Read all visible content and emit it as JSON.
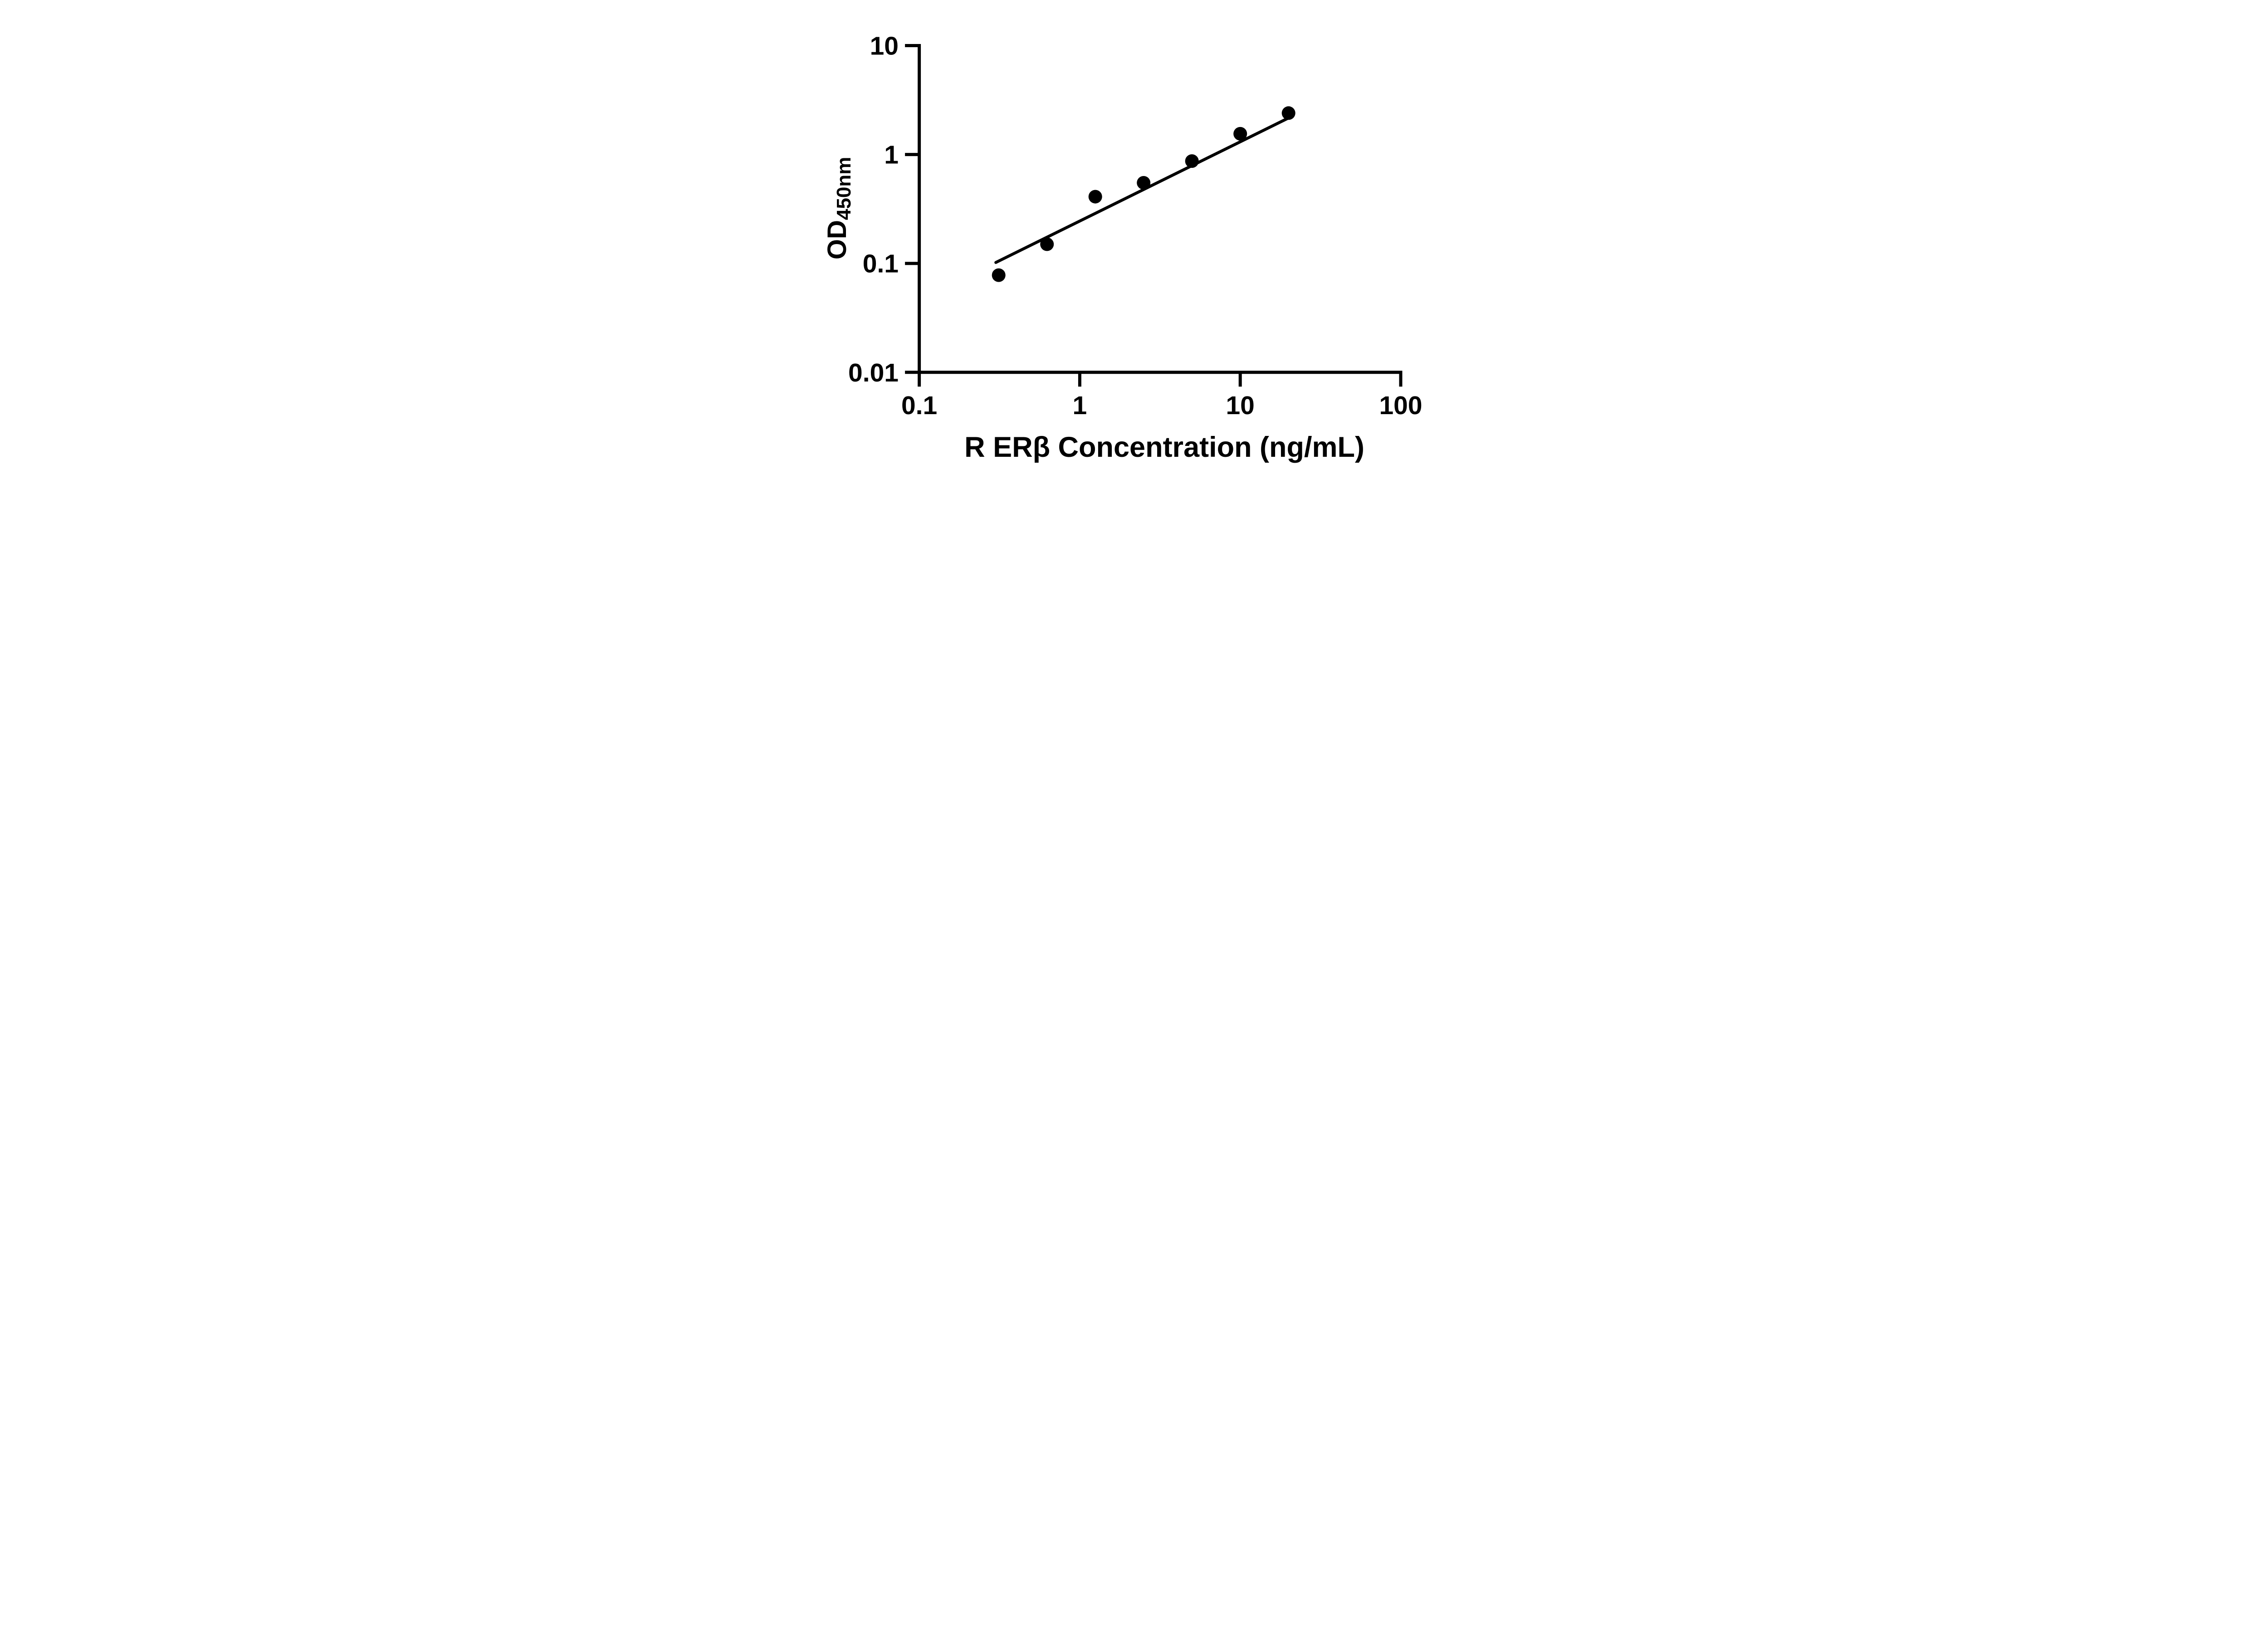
{
  "figure": {
    "background": "#ffffff",
    "ink_color": "#000000",
    "description": "ELISA standard curve scatter plot with fitted line on log-log axes"
  },
  "chart_data": {
    "type": "scatter",
    "title": "",
    "xlabel": "R ERβ Concentration (ng/mL)",
    "ylabel_main": "OD",
    "ylabel_subscript": "450nm",
    "x_scale": "log",
    "y_scale": "log",
    "xlim": [
      0.1,
      100
    ],
    "ylim": [
      0.01,
      10
    ],
    "grid": false,
    "legend": null,
    "x_ticks": [
      {
        "v": 0.1,
        "label": "0.1"
      },
      {
        "v": 1,
        "label": "1"
      },
      {
        "v": 10,
        "label": "10"
      },
      {
        "v": 100,
        "label": "100"
      }
    ],
    "y_ticks": [
      {
        "v": 10,
        "label": "10"
      },
      {
        "v": 1,
        "label": "1"
      },
      {
        "v": 0.1,
        "label": "0.1"
      },
      {
        "v": 0.01,
        "label": "0.01"
      }
    ],
    "series": [
      {
        "name": "standard-curve-points",
        "marker": "filled-circle",
        "color": "#000000",
        "points": [
          {
            "x": 0.3125,
            "y": 0.078
          },
          {
            "x": 0.625,
            "y": 0.15
          },
          {
            "x": 1.25,
            "y": 0.41
          },
          {
            "x": 2.5,
            "y": 0.55
          },
          {
            "x": 5,
            "y": 0.87
          },
          {
            "x": 10,
            "y": 1.55
          },
          {
            "x": 20,
            "y": 2.4
          }
        ]
      }
    ],
    "fit_line": {
      "x1": 0.3,
      "y1": 0.102,
      "x2": 19.8,
      "y2": 2.15
    }
  }
}
